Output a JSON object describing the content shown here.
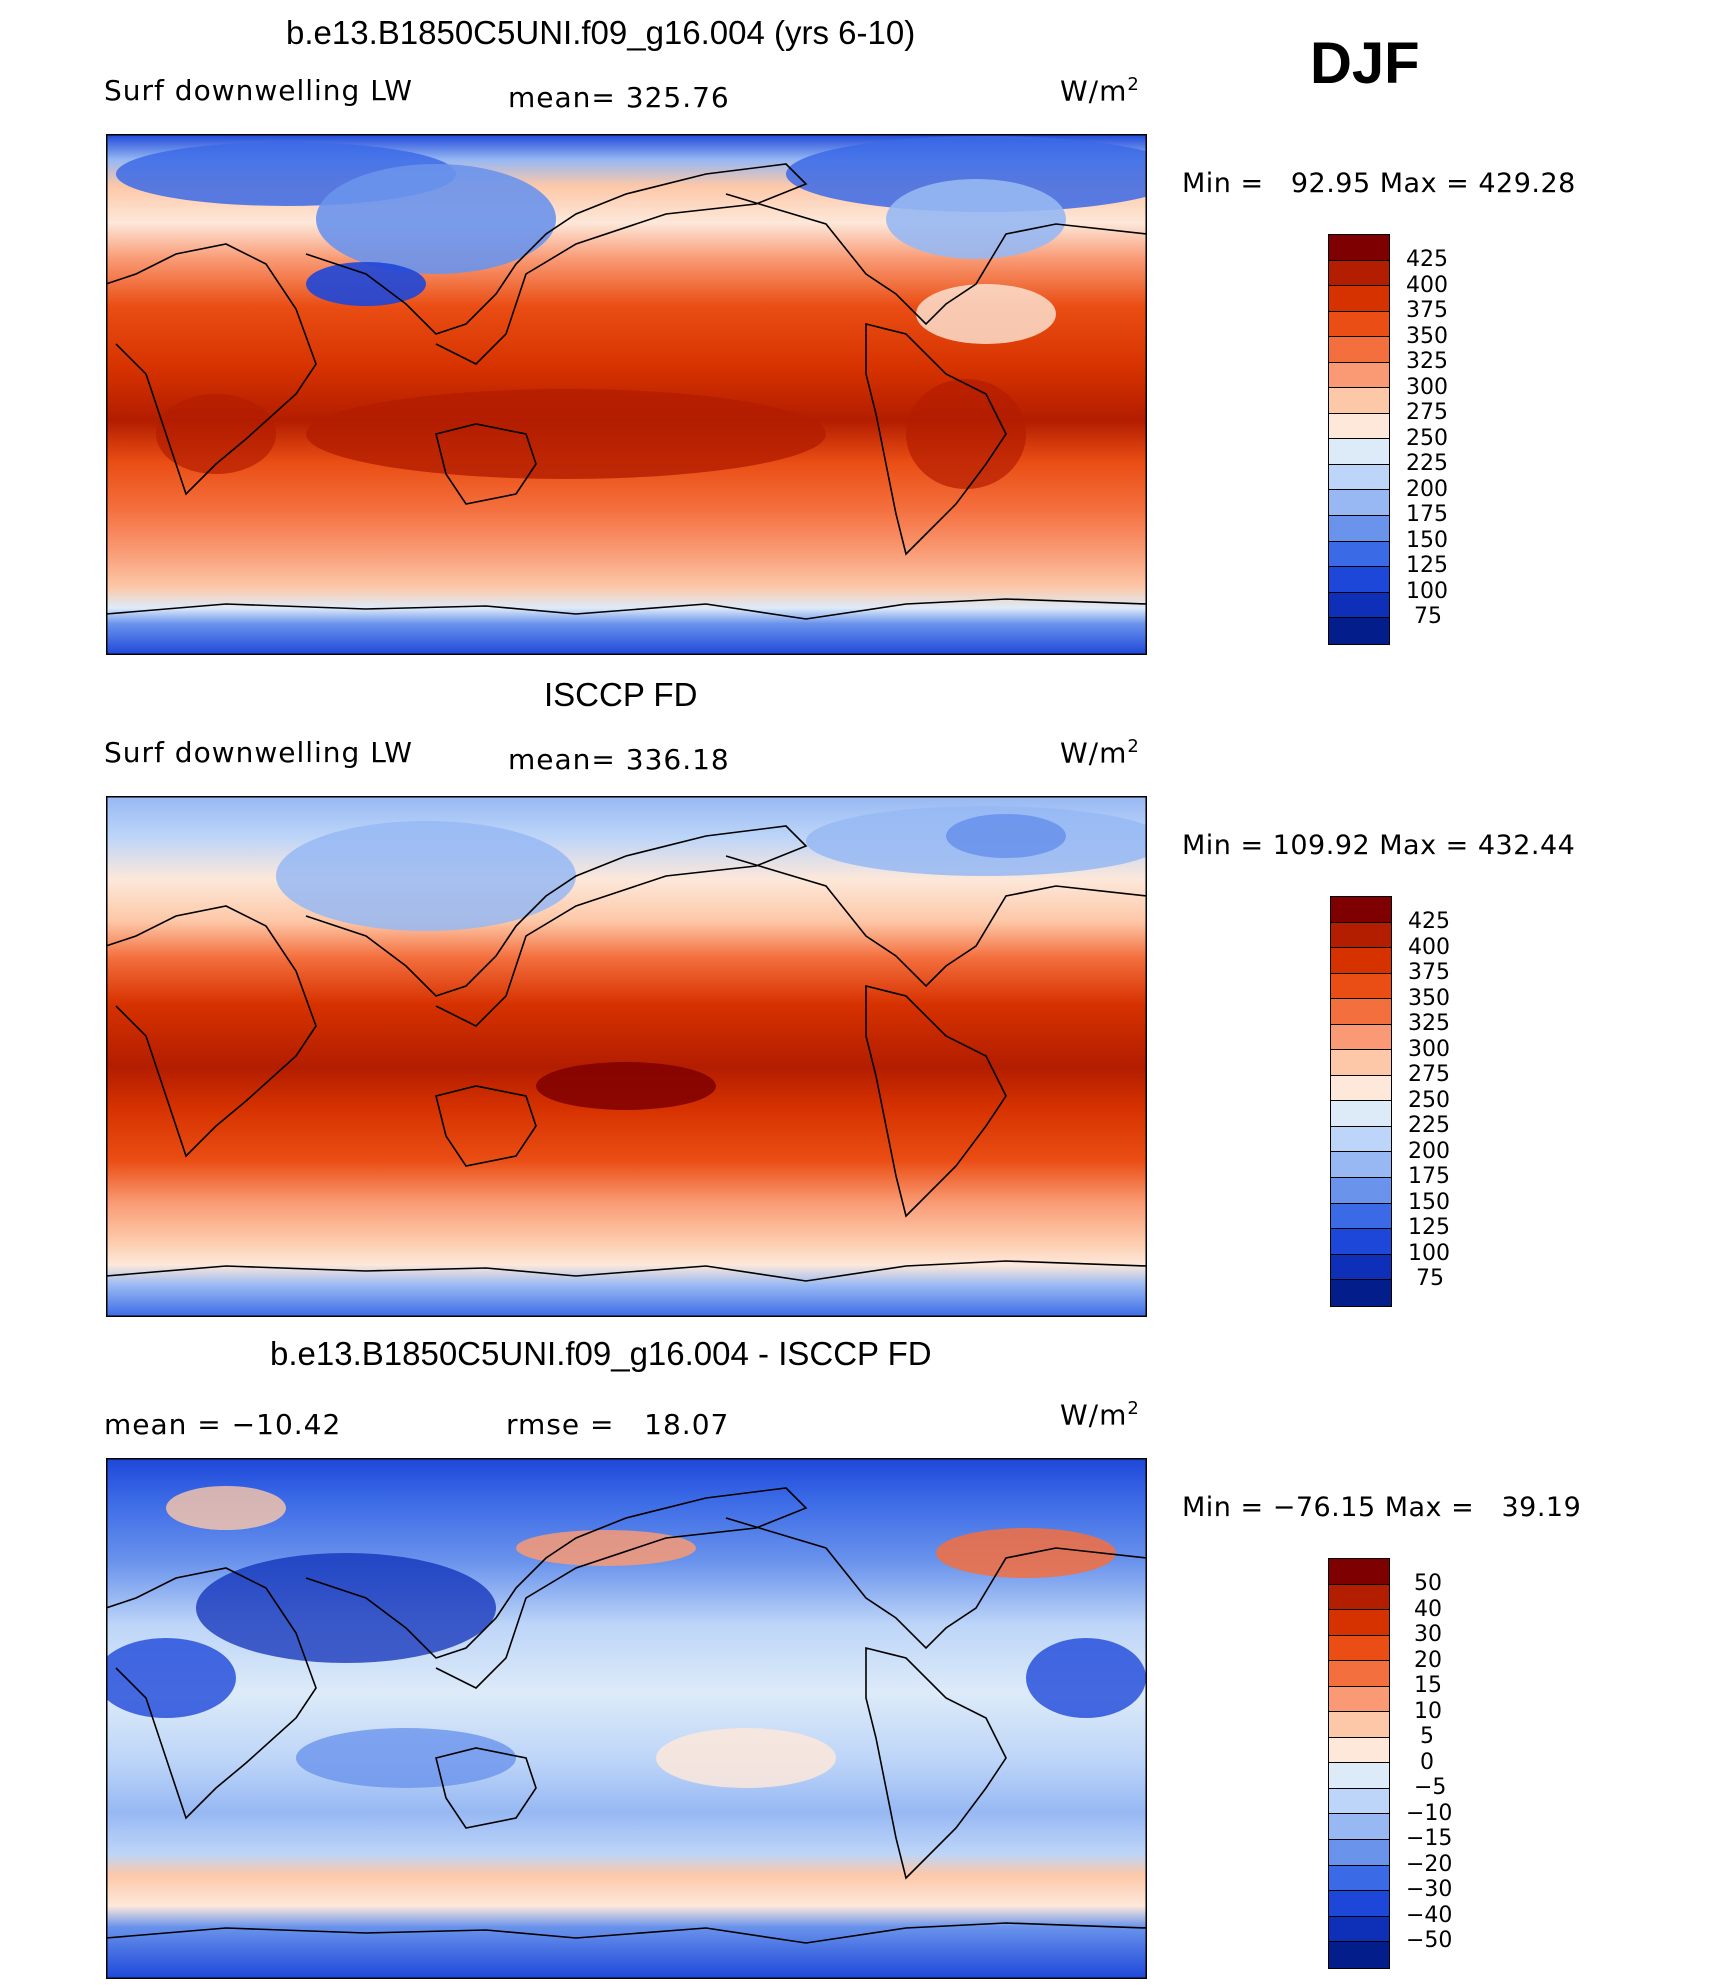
{
  "season": "DJF",
  "panels": [
    {
      "title": "b.e13.B1850C5UNI.f09_g16.004 (yrs 6-10)",
      "left_label": "Surf downwelling LW",
      "center_label": "mean= 325.76",
      "units": "W/m",
      "units_sup": "2",
      "minmax": "Min =   92.95 Max = 429.28",
      "colorbar_labels": [
        "425",
        "400",
        "375",
        "350",
        "325",
        "300",
        "275",
        "250",
        "225",
        "200",
        "175",
        "150",
        "125",
        "100",
        "75"
      ]
    },
    {
      "title": "ISCCP FD",
      "left_label": "Surf downwelling LW",
      "center_label": "mean= 336.18",
      "units": "W/m",
      "units_sup": "2",
      "minmax": "Min = 109.92 Max = 432.44",
      "colorbar_labels": [
        "425",
        "400",
        "375",
        "350",
        "325",
        "300",
        "275",
        "250",
        "225",
        "200",
        "175",
        "150",
        "125",
        "100",
        "75"
      ]
    },
    {
      "title": "b.e13.B1850C5UNI.f09_g16.004 - ISCCP FD",
      "left_label": "mean = −10.42",
      "center_label": "rmse =   18.07",
      "units": "W/m",
      "units_sup": "2",
      "minmax": "Min = −76.15 Max =   39.19",
      "colorbar_labels": [
        "50",
        "40",
        "30",
        "20",
        "15",
        "10",
        "5",
        "0",
        "−5",
        "−10",
        "−15",
        "−20",
        "−30",
        "−40",
        "−50"
      ]
    }
  ],
  "colors": {
    "palette": [
      "#7f0000",
      "#b31d00",
      "#d63200",
      "#ea4e14",
      "#f46f3e",
      "#f99a74",
      "#fdc8a8",
      "#fde8da",
      "#ddebf9",
      "#bdd5f8",
      "#97b8f3",
      "#6a93ec",
      "#3b6ae6",
      "#1d47d9",
      "#0e2fb8",
      "#031d8a"
    ]
  }
}
